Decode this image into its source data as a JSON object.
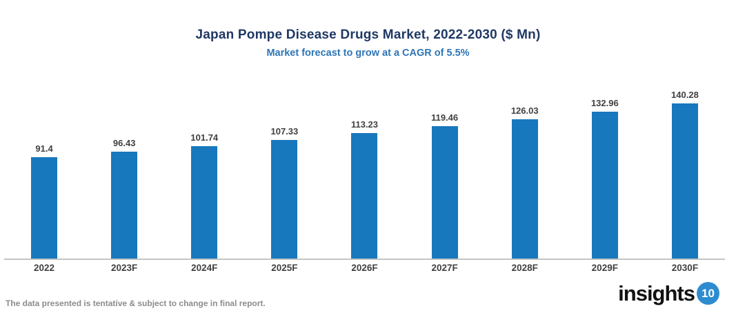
{
  "header": {
    "title": "Japan Pompe Disease Drugs Market, 2022-2030 ($ Mn)",
    "subtitle": "Market forecast to grow at a CAGR of 5.5%"
  },
  "chart_data": {
    "type": "bar",
    "title": "Japan Pompe Disease Drugs Market, 2022-2030 ($ Mn)",
    "subtitle": "Market forecast to grow at a CAGR of 5.5%",
    "categories": [
      "2022",
      "2023F",
      "2024F",
      "2025F",
      "2026F",
      "2027F",
      "2028F",
      "2029F",
      "2030F"
    ],
    "values": [
      91.4,
      96.43,
      101.74,
      107.33,
      113.23,
      119.46,
      126.03,
      132.96,
      140.28
    ],
    "value_labels": [
      "91.4",
      "96.43",
      "101.74",
      "107.33",
      "113.23",
      "119.46",
      "126.03",
      "132.96",
      "140.28"
    ],
    "xlabel": "",
    "ylabel": "",
    "ylim": [
      0,
      150
    ],
    "grid": false,
    "legend": false,
    "bar_color": "#1878BE",
    "axis_line_color": "#C4C4C4"
  },
  "footer": {
    "note": "The data presented is tentative & subject to change in final report.",
    "logo_text": "insights",
    "logo_badge": "10",
    "logo_badge_color": "#2D8CD0"
  },
  "colors": {
    "title": "#1F3864",
    "subtitle": "#2E75B6",
    "data_label": "#404040",
    "footer_text": "#8C8C8C"
  }
}
